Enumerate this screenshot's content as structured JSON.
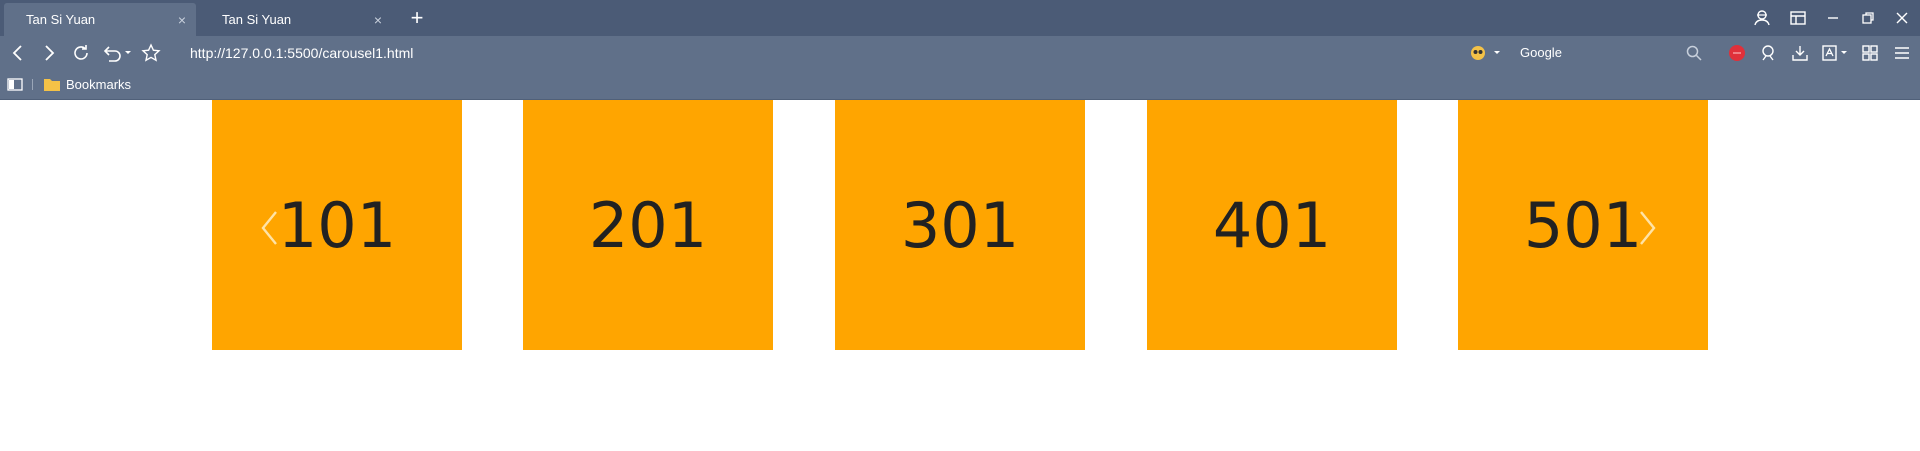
{
  "browser": {
    "tabs": [
      {
        "title": "Tan Si Yuan",
        "active": true
      },
      {
        "title": "Tan Si Yuan",
        "active": false
      }
    ],
    "new_tab_label": "+",
    "tab_close_label": "×",
    "url": "http://127.0.0.1:5500/carousel1.html",
    "search_engine": "Google",
    "bookmarks_label": "Bookmarks"
  },
  "carousel": {
    "slides": [
      "101",
      "201",
      "301",
      "401",
      "501"
    ],
    "slide_color": "#ffa500",
    "prev_icon": "chevron-left-icon",
    "next_icon": "chevron-right-icon"
  },
  "colors": {
    "tabbar": "#4b5b76",
    "toolbar": "#607089",
    "accent_red": "#e0303a",
    "folder": "#f4c247"
  }
}
